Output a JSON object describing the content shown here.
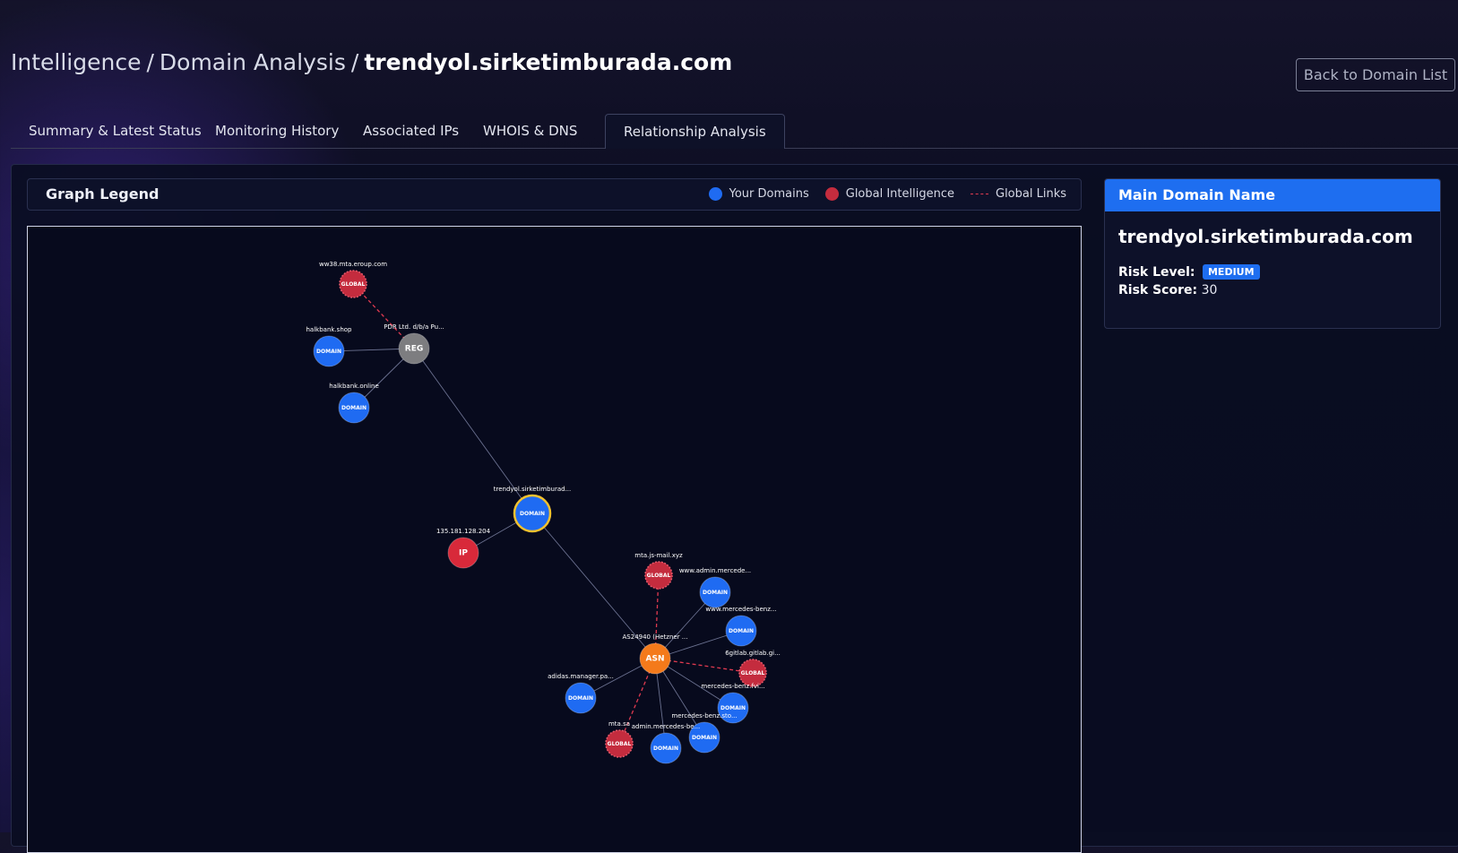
{
  "breadcrumb": {
    "part1": "Intelligence",
    "sep1": "/",
    "part2": "Domain Analysis",
    "sep2": "/",
    "current": "trendyol.sirketimburada.com"
  },
  "back_button": "Back to Domain List",
  "tabs": [
    {
      "label": "Summary & Latest Status",
      "active": false
    },
    {
      "label": "Monitoring History",
      "active": false
    },
    {
      "label": "Associated IPs",
      "active": false
    },
    {
      "label": "WHOIS & DNS",
      "active": false
    },
    {
      "label": "Relationship Analysis",
      "active": true
    }
  ],
  "legend": {
    "title": "Graph Legend",
    "your_domains": "Your Domains",
    "global_intelligence": "Global Intelligence",
    "global_links": "Global Links"
  },
  "colors": {
    "domain": "#1f6bf2",
    "global": "#c42c3e",
    "registrar": "#7d7d80",
    "ip": "#d8293a",
    "asn": "#f47a1b",
    "main_ring": "#f2c12e",
    "accent": "#1e6ef0"
  },
  "graph": {
    "nodes": [
      {
        "id": "main",
        "type": "DOMAIN",
        "label": "trendyol.sirketimburad...",
        "main": true
      },
      {
        "id": "reg",
        "type": "REG",
        "label": "PDR Ltd. d/b/a Pu..."
      },
      {
        "id": "g1",
        "type": "GLOBAL",
        "label": "ww38.mta.eroup.com"
      },
      {
        "id": "d1",
        "type": "DOMAIN",
        "label": "halkbank.shop"
      },
      {
        "id": "d2",
        "type": "DOMAIN",
        "label": "halkbank.online"
      },
      {
        "id": "ip",
        "type": "IP",
        "label": "135.181.128.204"
      },
      {
        "id": "asn",
        "type": "ASN",
        "label": "AS24940 (Hetzner ..."
      },
      {
        "id": "g2",
        "type": "GLOBAL",
        "label": "mta.js-mail.xyz"
      },
      {
        "id": "d3",
        "type": "DOMAIN",
        "label": "www.admin.mercede..."
      },
      {
        "id": "d4",
        "type": "DOMAIN",
        "label": "www.mercedes-benz..."
      },
      {
        "id": "g3",
        "type": "GLOBAL",
        "label": "6gitlab.gitlab.gi..."
      },
      {
        "id": "d5",
        "type": "DOMAIN",
        "label": "mercedes-benz.fvi..."
      },
      {
        "id": "d6",
        "type": "DOMAIN",
        "label": "mercedes-benz.sto..."
      },
      {
        "id": "d7",
        "type": "DOMAIN",
        "label": "admin.mercedes-be..."
      },
      {
        "id": "g4",
        "type": "GLOBAL",
        "label": "mta.sa"
      },
      {
        "id": "d8",
        "type": "DOMAIN",
        "label": "adidas.manager.pa..."
      }
    ],
    "edges": [
      {
        "from": "main",
        "to": "reg",
        "global": false
      },
      {
        "from": "main",
        "to": "ip",
        "global": false
      },
      {
        "from": "main",
        "to": "asn",
        "global": false
      },
      {
        "from": "reg",
        "to": "g1",
        "global": true
      },
      {
        "from": "reg",
        "to": "d1",
        "global": false
      },
      {
        "from": "reg",
        "to": "d2",
        "global": false
      },
      {
        "from": "asn",
        "to": "g2",
        "global": true
      },
      {
        "from": "asn",
        "to": "d3",
        "global": false
      },
      {
        "from": "asn",
        "to": "d4",
        "global": false
      },
      {
        "from": "asn",
        "to": "g3",
        "global": true
      },
      {
        "from": "asn",
        "to": "d5",
        "global": false
      },
      {
        "from": "asn",
        "to": "d6",
        "global": false
      },
      {
        "from": "asn",
        "to": "d7",
        "global": false
      },
      {
        "from": "asn",
        "to": "g4",
        "global": true
      },
      {
        "from": "asn",
        "to": "d8",
        "global": false
      }
    ]
  },
  "side": {
    "header": "Main Domain Name",
    "domain": "trendyol.sirketimburada.com",
    "risk_level_label": "Risk Level:",
    "risk_level": "MEDIUM",
    "risk_score_label": "Risk Score:",
    "risk_score": "30"
  }
}
